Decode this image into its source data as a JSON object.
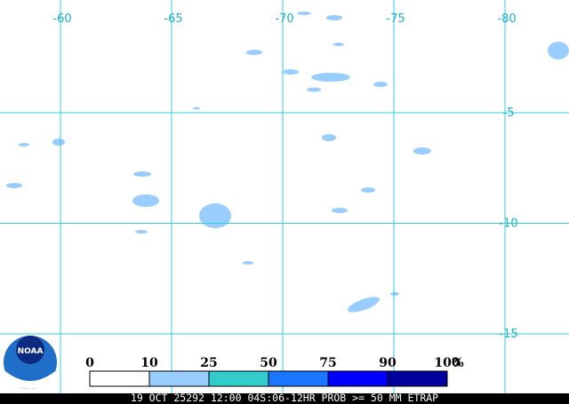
{
  "map": {
    "lon_labels": [
      "-60",
      "-65",
      "-70",
      "-75",
      "-80"
    ],
    "lat_labels": [
      "-5",
      "-10",
      "-15"
    ],
    "legend": {
      "labels": [
        "0",
        "10",
        "25",
        "50",
        "75",
        "90",
        "100"
      ],
      "unit": "%",
      "colors": [
        "#ffffff",
        "#99ccff",
        "#33cccc",
        "#1a75ff",
        "#0000ff",
        "#00009c"
      ]
    },
    "caption": "19 OCT 25292 12:00 04S:06-12HR PROB >= 50 MM ETRAP"
  },
  "logo": "NOAA"
}
